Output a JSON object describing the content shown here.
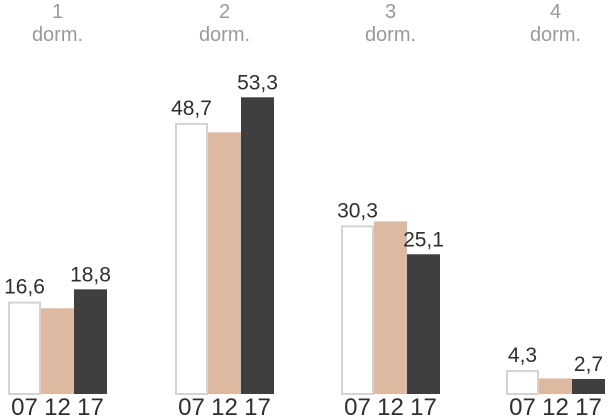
{
  "chart_data": {
    "type": "bar",
    "groups": [
      {
        "line1": "1",
        "line2": "dorm."
      },
      {
        "line1": "2",
        "line2": "dorm."
      },
      {
        "line1": "3",
        "line2": "dorm."
      },
      {
        "line1": "4",
        "line2": "dorm."
      }
    ],
    "x_tick_labels": [
      "07",
      "12",
      "17"
    ],
    "series": [
      {
        "key": "07",
        "values": [
          16.6,
          48.7,
          30.3,
          4.3
        ]
      },
      {
        "key": "12",
        "values": [
          15.4,
          47.0,
          31.0,
          2.8
        ]
      },
      {
        "key": "17",
        "values": [
          18.8,
          53.3,
          25.1,
          2.7
        ]
      }
    ],
    "data_labels": [
      [
        "16,6",
        "",
        "18,8"
      ],
      [
        "48,7",
        "",
        "53,3"
      ],
      [
        "30,3",
        "",
        "25,1"
      ],
      [
        "4,3",
        "",
        "2,7"
      ]
    ],
    "ylim": [
      0,
      60
    ],
    "grid": false,
    "legend": "none"
  },
  "colors": {
    "bar_07_fill": "#ffffff",
    "bar_07_stroke": "#d3d3d3",
    "bar_12_fill": "#ddb9a1",
    "bar_17_fill": "#3f3f3f",
    "group_label": "#9a9a9a",
    "text": "#2f2f2f"
  }
}
